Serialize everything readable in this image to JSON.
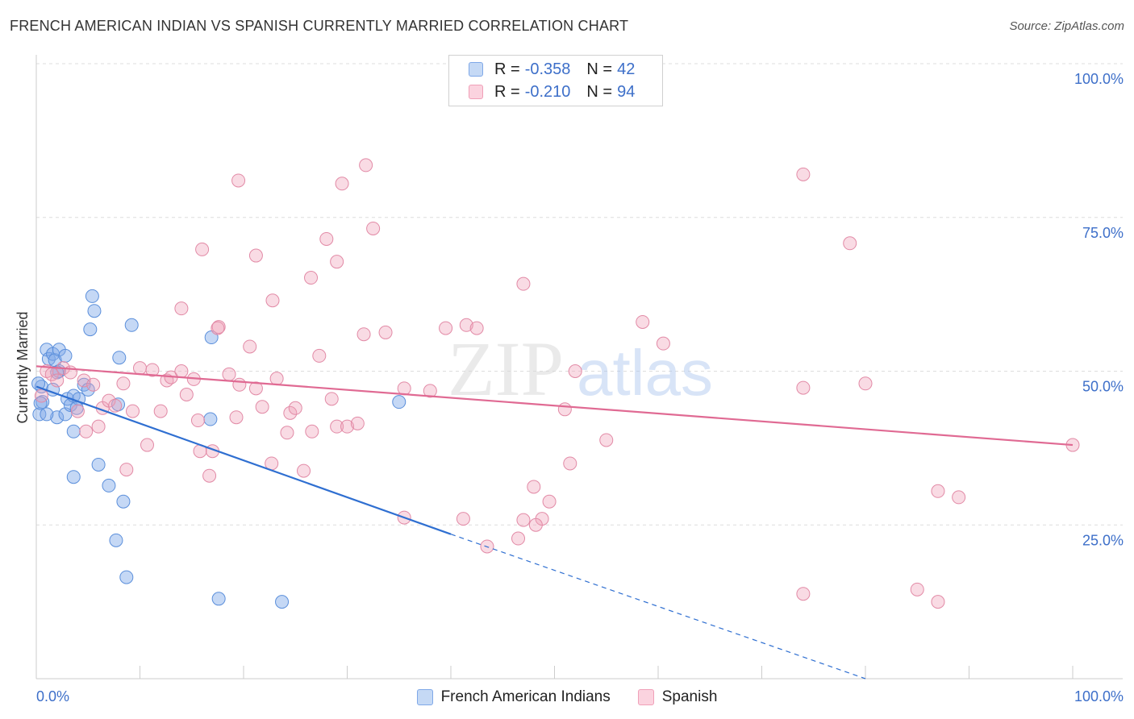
{
  "header": {
    "title": "FRENCH AMERICAN INDIAN VS SPANISH CURRENTLY MARRIED CORRELATION CHART",
    "source": "Source: ZipAtlas.com"
  },
  "watermark": {
    "zip": "ZIP",
    "atlas": "atlas"
  },
  "legend": {
    "r_label": "R =",
    "n_label": "N =",
    "rows": [
      {
        "r": "-0.358",
        "n": "42",
        "color": "#7fa8e8"
      },
      {
        "r": "-0.210",
        "n": "94",
        "color": "#f0a0b8"
      }
    ]
  },
  "bottom_legend": [
    {
      "label": "French American Indians",
      "color": "#7fa8e8"
    },
    {
      "label": "Spanish",
      "color": "#f0a0b8"
    }
  ],
  "chart_data": {
    "type": "scatter",
    "title": "FRENCH AMERICAN INDIAN VS SPANISH CURRENTLY MARRIED CORRELATION CHART",
    "xlabel": "",
    "ylabel": "Currently Married",
    "xlim": [
      0,
      100
    ],
    "ylim": [
      0,
      100
    ],
    "x_tick_labels": [
      "0.0%",
      "100.0%"
    ],
    "y_tick_labels": [
      "100.0%",
      "75.0%",
      "50.0%",
      "25.0%"
    ],
    "y_ticks": [
      100,
      75,
      50,
      25
    ],
    "grid": true,
    "series": [
      {
        "name": "French American Indians",
        "color": "#7fa8e8",
        "stroke": "#5b8fdb",
        "trend_color": "#2f6fd1",
        "trend": {
          "x0": 0,
          "y0": 47.5,
          "x1": 40,
          "y1": 23.5,
          "x_dash_end": 80,
          "y_dash_end": 0
        },
        "points": [
          [
            0.5,
            47.5
          ],
          [
            0.3,
            43
          ],
          [
            0.6,
            45
          ],
          [
            0.2,
            48
          ],
          [
            1.0,
            53.5
          ],
          [
            1.2,
            52
          ],
          [
            1.6,
            52.8
          ],
          [
            1.8,
            51.8
          ],
          [
            2.2,
            53.5
          ],
          [
            2.8,
            52.5
          ],
          [
            2.2,
            50
          ],
          [
            1.6,
            47
          ],
          [
            2.0,
            42.5
          ],
          [
            1.0,
            43
          ],
          [
            2.8,
            43
          ],
          [
            3.0,
            45.5
          ],
          [
            3.3,
            44.5
          ],
          [
            3.6,
            46
          ],
          [
            4.1,
            45.5
          ],
          [
            4.6,
            47.8
          ],
          [
            5.0,
            47
          ],
          [
            3.6,
            40.2
          ],
          [
            3.9,
            44
          ],
          [
            5.2,
            56.8
          ],
          [
            5.4,
            62.2
          ],
          [
            5.6,
            59.8
          ],
          [
            8.0,
            52.2
          ],
          [
            9.2,
            57.5
          ],
          [
            16.9,
            55.5
          ],
          [
            6.0,
            34.8
          ],
          [
            3.6,
            32.8
          ],
          [
            7.0,
            31.4
          ],
          [
            8.4,
            28.8
          ],
          [
            7.7,
            22.5
          ],
          [
            8.7,
            16.5
          ],
          [
            17.6,
            13
          ],
          [
            23.7,
            12.5
          ],
          [
            16.8,
            42.2
          ],
          [
            7.9,
            44.6
          ],
          [
            35.0,
            45
          ],
          [
            2.0,
            49.8
          ],
          [
            0.4,
            44.8
          ]
        ]
      },
      {
        "name": "Spanish",
        "color": "#f0a0b8",
        "stroke": "#e28aa6",
        "trend_color": "#e06a93",
        "trend": {
          "x0": 0,
          "y0": 50.8,
          "x1": 100,
          "y1": 38
        },
        "points": [
          [
            0.5,
            46
          ],
          [
            1.0,
            50
          ],
          [
            1.5,
            49.5
          ],
          [
            2.0,
            48.5
          ],
          [
            2.6,
            50.5
          ],
          [
            3.3,
            49.8
          ],
          [
            4.0,
            43.5
          ],
          [
            4.6,
            48.5
          ],
          [
            5.5,
            47.8
          ],
          [
            6.4,
            44
          ],
          [
            7.0,
            45.2
          ],
          [
            7.6,
            44.4
          ],
          [
            8.4,
            48
          ],
          [
            9.3,
            43.5
          ],
          [
            10.0,
            50.5
          ],
          [
            10.7,
            38
          ],
          [
            8.7,
            34
          ],
          [
            4.8,
            40.2
          ],
          [
            6.0,
            41
          ],
          [
            11.2,
            50.2
          ],
          [
            12.0,
            43.5
          ],
          [
            12.6,
            48.5
          ],
          [
            13.0,
            49
          ],
          [
            14.0,
            50
          ],
          [
            14.5,
            46.2
          ],
          [
            15.2,
            48.7
          ],
          [
            15.6,
            42
          ],
          [
            15.8,
            37
          ],
          [
            17.0,
            37
          ],
          [
            16.7,
            33
          ],
          [
            17.6,
            57.2
          ],
          [
            18.6,
            49.5
          ],
          [
            19.3,
            42.5
          ],
          [
            19.6,
            47.8
          ],
          [
            20.6,
            54
          ],
          [
            21.2,
            47.2
          ],
          [
            21.8,
            44.2
          ],
          [
            22.7,
            35
          ],
          [
            23.2,
            48.8
          ],
          [
            24.2,
            40
          ],
          [
            24.5,
            43.2
          ],
          [
            25.0,
            44
          ],
          [
            25.8,
            33.8
          ],
          [
            26.6,
            40.2
          ],
          [
            27.3,
            52.5
          ],
          [
            28.5,
            45.5
          ],
          [
            29.0,
            41
          ],
          [
            30.0,
            41
          ],
          [
            31.0,
            41.5
          ],
          [
            31.6,
            56
          ],
          [
            32.5,
            73.2
          ],
          [
            33.7,
            56.3
          ],
          [
            35.5,
            47.2
          ],
          [
            38.0,
            46.8
          ],
          [
            39.5,
            57
          ],
          [
            41.5,
            57.5
          ],
          [
            42.5,
            57
          ],
          [
            43.5,
            21.5
          ],
          [
            41.2,
            26
          ],
          [
            35.5,
            26.2
          ],
          [
            46.5,
            22.8
          ],
          [
            48.8,
            26
          ],
          [
            48.2,
            25
          ],
          [
            47.0,
            25.8
          ],
          [
            48.0,
            31.2
          ],
          [
            49.5,
            28.8
          ],
          [
            51.5,
            35
          ],
          [
            52.0,
            50
          ],
          [
            51.0,
            43.8
          ],
          [
            55.0,
            38.8
          ],
          [
            17.5,
            57
          ],
          [
            16.0,
            69.8
          ],
          [
            21.2,
            68.8
          ],
          [
            22.8,
            61.5
          ],
          [
            26.5,
            65.2
          ],
          [
            28.0,
            71.5
          ],
          [
            29.0,
            67.8
          ],
          [
            29.5,
            80.5
          ],
          [
            31.8,
            83.5
          ],
          [
            19.5,
            81
          ],
          [
            14.0,
            60.2
          ],
          [
            47.0,
            64.2
          ],
          [
            58.5,
            58
          ],
          [
            60.5,
            54.5
          ],
          [
            74.0,
            82
          ],
          [
            78.5,
            70.8
          ],
          [
            74.0,
            47.3
          ],
          [
            80.0,
            48
          ],
          [
            87.0,
            30.5
          ],
          [
            89.0,
            29.5
          ],
          [
            85.0,
            14.5
          ],
          [
            87.0,
            12.5
          ],
          [
            74.0,
            13.8
          ],
          [
            100.0,
            38
          ]
        ]
      }
    ]
  }
}
